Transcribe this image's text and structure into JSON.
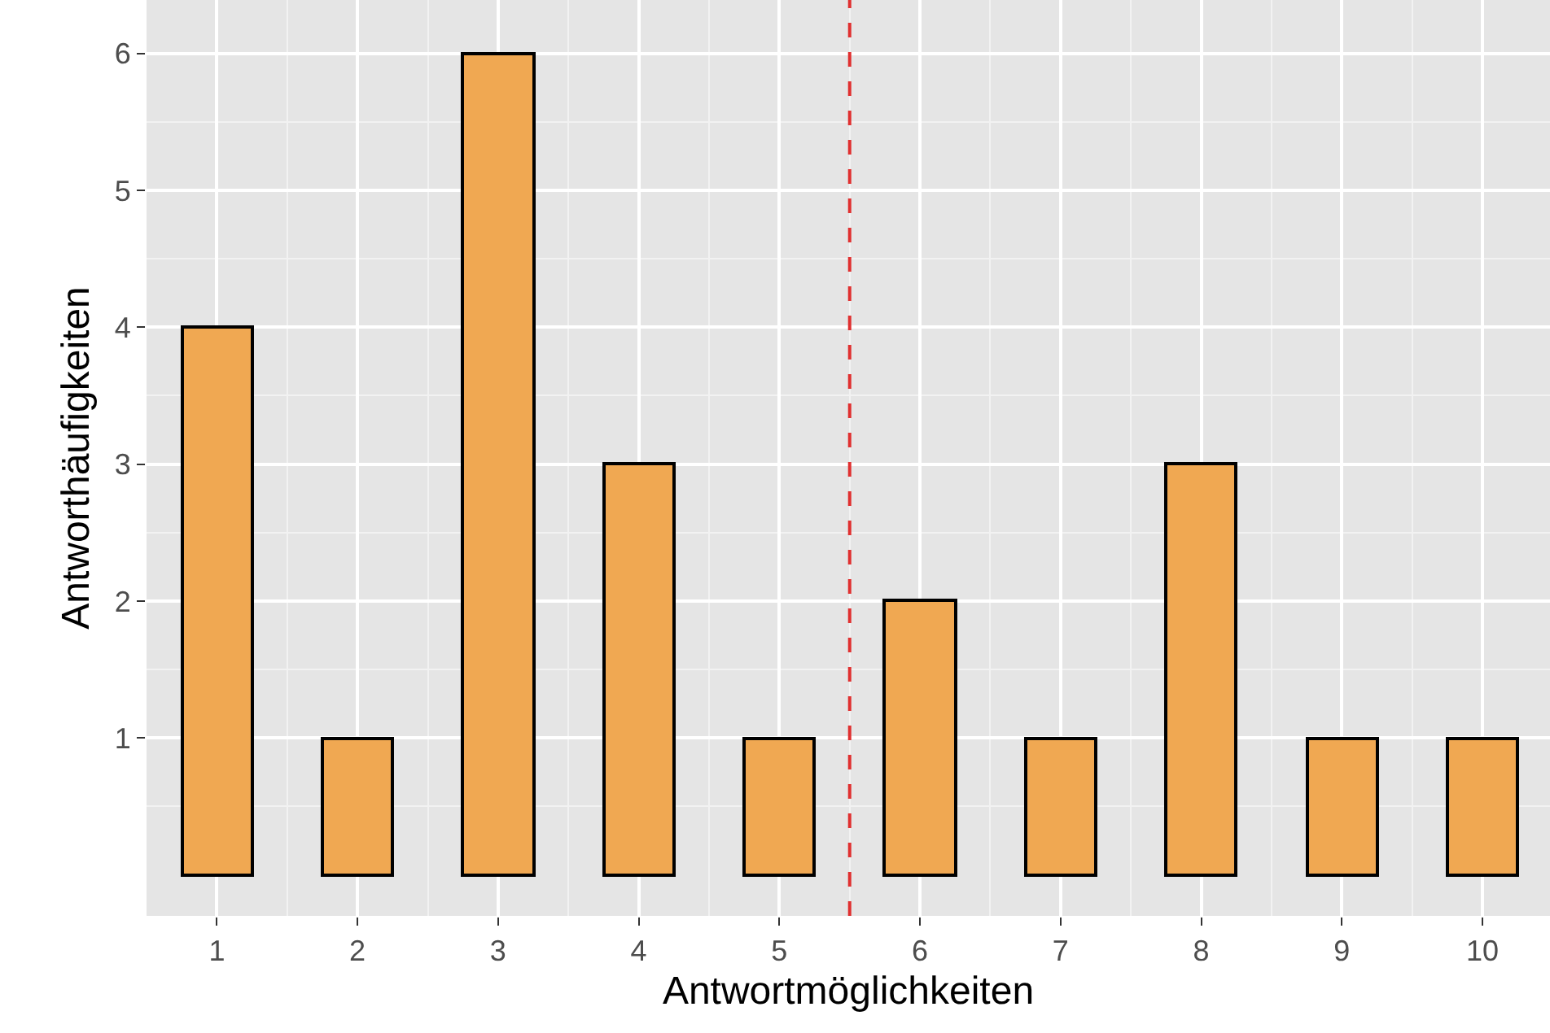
{
  "chart_data": {
    "type": "bar",
    "xlabel": "Antwortmöglichkeiten",
    "ylabel": "Antworthäufigkeiten",
    "x": [
      1,
      2,
      3,
      4,
      5,
      6,
      7,
      8,
      9,
      10
    ],
    "values": [
      4,
      1,
      6,
      3,
      1,
      2,
      1,
      3,
      1,
      1
    ],
    "color": "#f0a852",
    "xlim": [
      0.5,
      10.48
    ],
    "xticks": [
      1,
      2,
      3,
      4,
      5,
      6,
      7,
      8,
      9,
      10
    ],
    "ylim": [
      -0.3,
      6.39
    ],
    "yticks": [
      1,
      2,
      3,
      4,
      5,
      6
    ],
    "grid": true,
    "ref_lines": [
      {
        "axis": "x",
        "value": 5.5,
        "color": "#e03030",
        "line_style": "dashed"
      }
    ]
  }
}
